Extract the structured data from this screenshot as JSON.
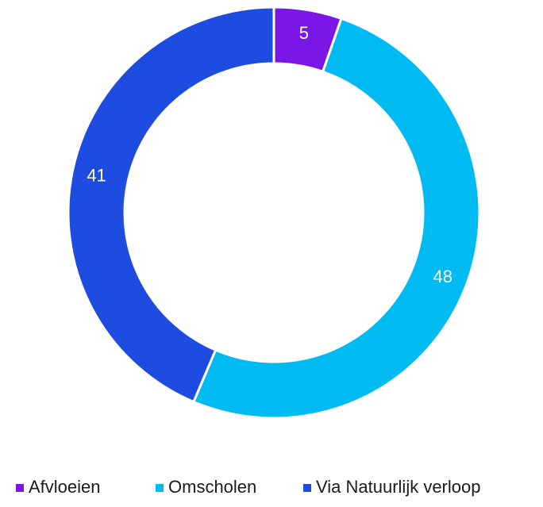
{
  "chart_data": {
    "type": "donut",
    "categories": [
      "Afvloeien",
      "Omscholen",
      "Via Natuurlijk verloop"
    ],
    "values": [
      5,
      48,
      41
    ],
    "colors": [
      "#7b17e6",
      "#00baf2",
      "#1f4ce0"
    ],
    "legend": "bottom"
  }
}
